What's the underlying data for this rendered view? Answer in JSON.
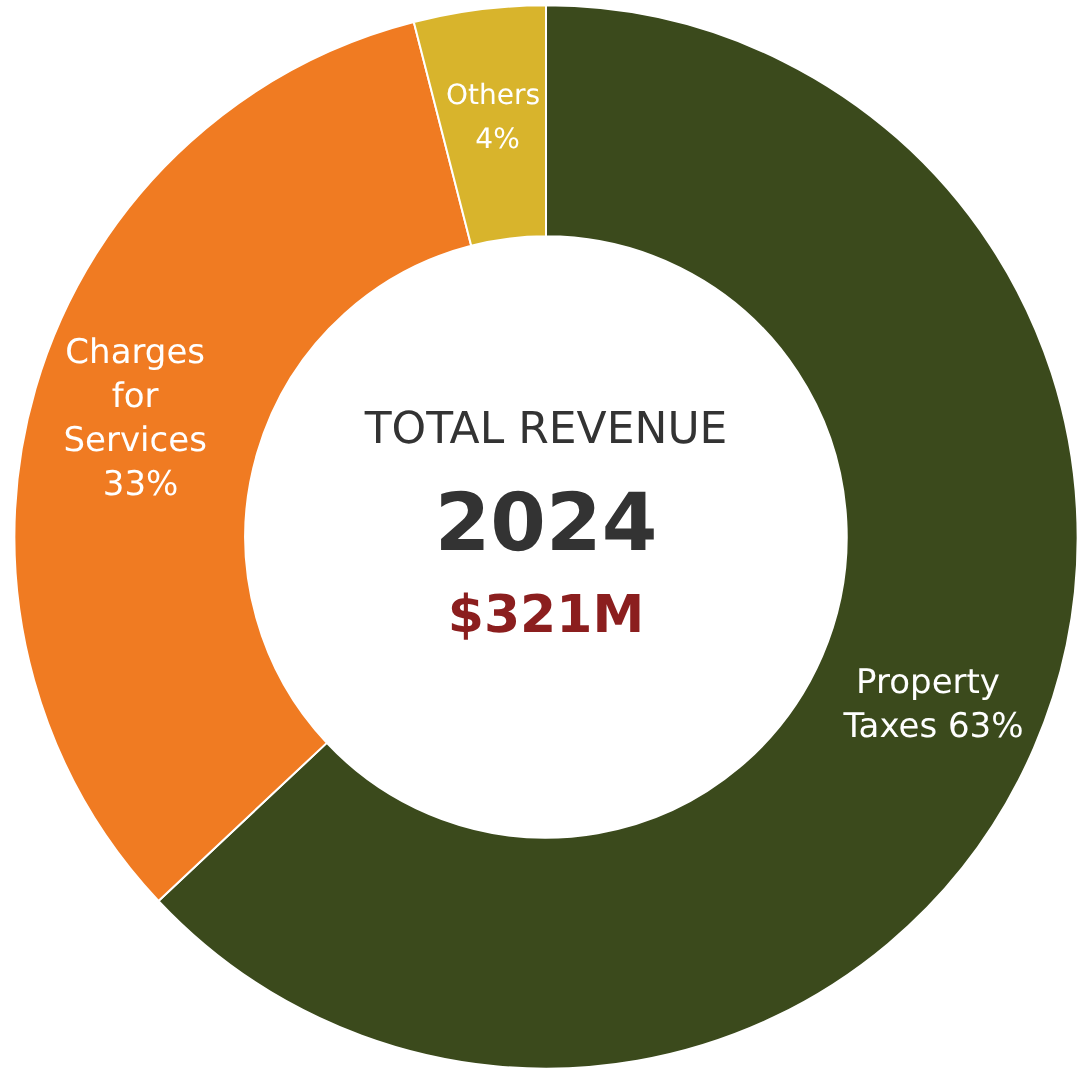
{
  "chart_data": {
    "type": "donut",
    "title": "TOTAL REVENUE",
    "subtitle": "2024",
    "annotations": [
      "$321M"
    ],
    "categories": [
      "Property Taxes",
      "Charges for Services",
      "Others"
    ],
    "values": [
      63,
      33,
      4
    ],
    "colors": [
      "#3b4a1c",
      "#f07b22",
      "#d8b42c"
    ],
    "value_labels": [
      "63%",
      "33%",
      "4%"
    ],
    "legend": false
  }
}
